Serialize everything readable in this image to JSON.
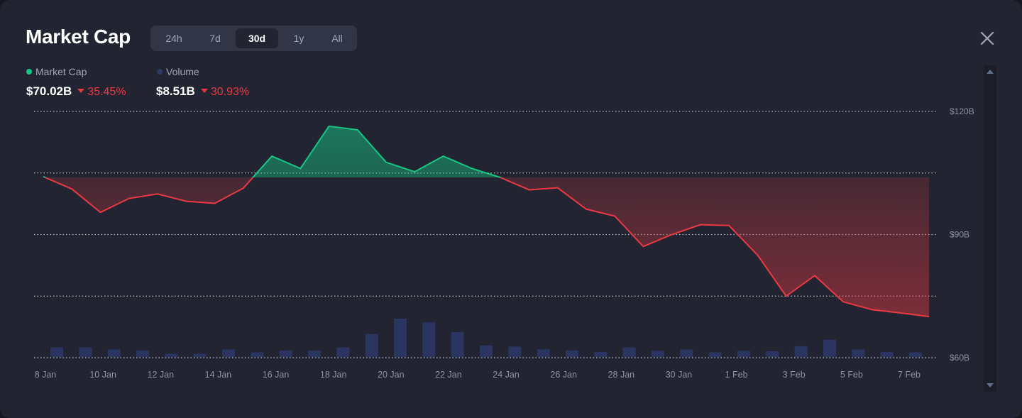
{
  "header": {
    "title": "Market Cap",
    "tabs": [
      {
        "label": "24h",
        "active": false
      },
      {
        "label": "7d",
        "active": false
      },
      {
        "label": "30d",
        "active": true
      },
      {
        "label": "1y",
        "active": false
      },
      {
        "label": "All",
        "active": false
      }
    ],
    "close_icon": "close-icon"
  },
  "legend": {
    "market_cap": {
      "label": "Market Cap",
      "value": "$70.02B",
      "change": "35.45%",
      "color": "#16c784"
    },
    "volume": {
      "label": "Volume",
      "value": "$8.51B",
      "change": "30.93%",
      "color": "#2d3a66"
    }
  },
  "colors": {
    "up": "#16c784",
    "down": "#ea3943",
    "volume_bar": "#2a3561",
    "gridline": "#d8dbe6",
    "axis_text": "#8b92a8"
  },
  "chart_data": {
    "type": "line",
    "baseline": 103.9,
    "ylim": [
      60,
      120
    ],
    "y_ticks": [
      {
        "value": 120,
        "label": "$120B"
      },
      {
        "value": 90,
        "label": "$90B"
      },
      {
        "value": 60,
        "label": "$60B"
      }
    ],
    "gridlines": [
      120,
      105,
      90,
      75,
      60
    ],
    "x_tick_labels": [
      "8 Jan",
      "10 Jan",
      "12 Jan",
      "14 Jan",
      "16 Jan",
      "18 Jan",
      "20 Jan",
      "22 Jan",
      "24 Jan",
      "26 Jan",
      "28 Jan",
      "30 Jan",
      "1 Feb",
      "3 Feb",
      "5 Feb",
      "7 Feb"
    ],
    "series": [
      {
        "name": "Market Cap",
        "values": [
          104.1,
          101.1,
          95.4,
          98.8,
          99.9,
          98.1,
          97.6,
          101.3,
          109.1,
          106.1,
          116.4,
          115.5,
          107.6,
          105.3,
          109.1,
          106.1,
          103.9,
          100.9,
          101.4,
          96.2,
          94.5,
          87.1,
          90.0,
          92.4,
          92.2,
          85.0,
          75.0,
          80.0,
          73.6,
          71.7,
          70.9,
          70.0
        ]
      },
      {
        "name": "Volume",
        "relative_values": [
          0.25,
          0.25,
          0.2,
          0.17,
          0.08,
          0.08,
          0.2,
          0.12,
          0.17,
          0.17,
          0.25,
          0.6,
          1.0,
          0.9,
          0.65,
          0.3,
          0.27,
          0.2,
          0.17,
          0.13,
          0.25,
          0.16,
          0.2,
          0.12,
          0.16,
          0.15,
          0.28,
          0.45,
          0.2,
          0.13,
          0.12
        ]
      }
    ]
  }
}
